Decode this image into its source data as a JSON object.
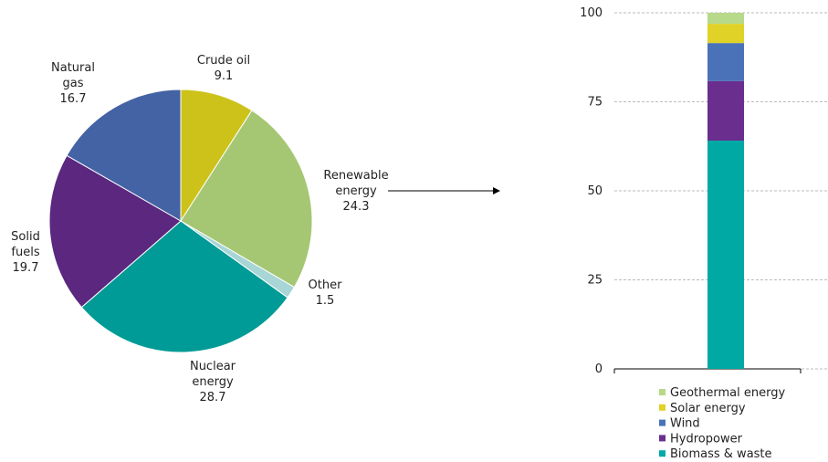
{
  "chart_data": [
    {
      "type": "pie",
      "categories": [
        "Crude oil",
        "Renewable energy",
        "Other",
        "Nuclear energy",
        "Solid fuels",
        "Natural gas"
      ],
      "values": [
        9.1,
        24.3,
        1.5,
        28.7,
        19.7,
        16.7
      ],
      "colors": [
        "#cdc21a",
        "#a5c773",
        "#a8d5d5",
        "#009b96",
        "#5b277f",
        "#4363a4"
      ]
    },
    {
      "type": "stacked_bar",
      "series": [
        {
          "name": "Biomass & waste",
          "color": "#00a9a4",
          "values": [
            64.1
          ]
        },
        {
          "name": "Hydropower",
          "color": "#6a2e8f",
          "values": [
            16.7
          ]
        },
        {
          "name": "Wind",
          "color": "#4a72b8",
          "values": [
            10.7
          ]
        },
        {
          "name": "Solar energy",
          "color": "#e0d227",
          "values": [
            5.4
          ]
        },
        {
          "name": "Geothermal energy",
          "color": "#b6d98a",
          "values": [
            3.1
          ]
        }
      ],
      "ylim": [
        0,
        100
      ],
      "yticks": [
        0,
        25,
        50,
        75,
        100
      ],
      "grid": true
    }
  ]
}
